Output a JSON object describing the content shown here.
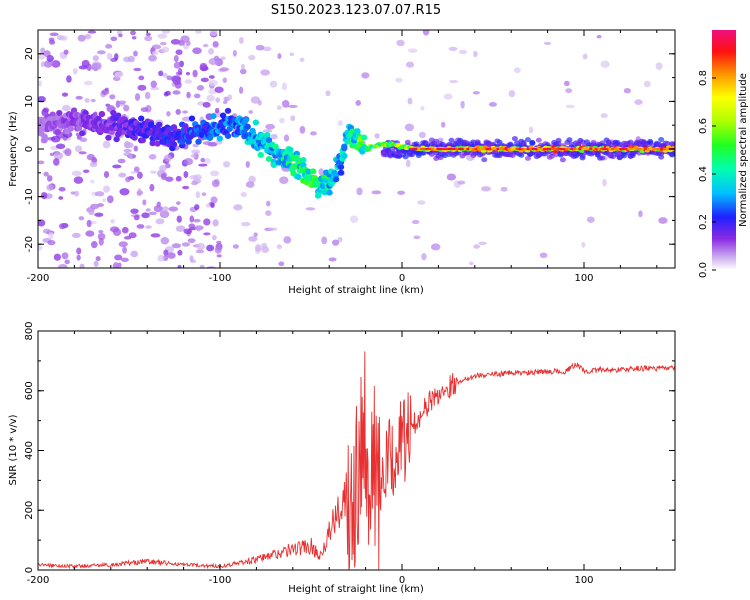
{
  "title": "S150.2023.123.07.07.R15",
  "chart_data": [
    {
      "type": "heatmap",
      "xlabel": "Height of straight line (km)",
      "ylabel": "Frequency (Hz)",
      "xlim": [
        -200,
        150
      ],
      "ylim": [
        -25,
        25
      ],
      "x_ticks": [
        -200,
        -100,
        0,
        100
      ],
      "x_tick_labels": [
        "-200",
        "-100",
        "0",
        "100"
      ],
      "y_ticks": [
        -20,
        -10,
        0,
        10,
        20
      ],
      "y_tick_labels": [
        "-20",
        "-10",
        "0",
        "10",
        "20"
      ],
      "colorbar": {
        "label": "Normalized spectral amplitude",
        "range": [
          0,
          1
        ],
        "ticks": [
          0.0,
          0.2,
          0.4,
          0.6,
          0.8
        ],
        "tick_labels": [
          "0.0",
          "0.2",
          "0.4",
          "0.6",
          "0.8"
        ]
      },
      "ridge": {
        "x": [
          -200,
          -175,
          -150,
          -125,
          -105,
          -90,
          -80,
          -70,
          -60,
          -50,
          -42,
          -38,
          -34,
          -30,
          -25,
          -20,
          -10,
          0,
          10,
          20,
          50,
          100,
          150
        ],
        "frequency": [
          5,
          6,
          4,
          3,
          4,
          5,
          3,
          -1,
          -3,
          -6,
          -8,
          -6,
          -3,
          3,
          2,
          0,
          1,
          0.5,
          0,
          0,
          0,
          0,
          0
        ],
        "amplitude": [
          0.1,
          0.15,
          0.2,
          0.25,
          0.3,
          0.35,
          0.4,
          0.45,
          0.5,
          0.55,
          0.5,
          0.45,
          0.4,
          0.45,
          0.55,
          0.6,
          0.65,
          0.7,
          0.8,
          0.85,
          0.9,
          0.92,
          0.95
        ]
      }
    },
    {
      "type": "line",
      "xlabel": "Height of straight line (km)",
      "ylabel": "SNR (10 * v/v)",
      "xlim": [
        -200,
        150
      ],
      "ylim": [
        0,
        800
      ],
      "x_ticks": [
        -200,
        -100,
        0,
        100
      ],
      "x_tick_labels": [
        "-200",
        "-100",
        "0",
        "100"
      ],
      "y_ticks": [
        0,
        200,
        400,
        600,
        800
      ],
      "y_tick_labels": [
        "0",
        "200",
        "400",
        "600",
        "800"
      ],
      "color": "#e83030",
      "series": [
        {
          "x": [
            -200,
            -180,
            -160,
            -140,
            -120,
            -100,
            -80,
            -70,
            -60,
            -50,
            -45,
            -40,
            -35,
            -30,
            -25,
            -22,
            -20,
            -18,
            -15,
            -12,
            -10,
            -5,
            0,
            5,
            10,
            15,
            20,
            25,
            30,
            40,
            50,
            60,
            70,
            80,
            90,
            96,
            100,
            110,
            120,
            130,
            140,
            150
          ],
          "y": [
            15,
            10,
            15,
            25,
            15,
            10,
            30,
            45,
            60,
            70,
            40,
            110,
            160,
            250,
            330,
            520,
            450,
            400,
            300,
            250,
            320,
            380,
            430,
            470,
            520,
            560,
            590,
            610,
            630,
            650,
            655,
            660,
            660,
            665,
            665,
            690,
            665,
            670,
            670,
            675,
            675,
            675
          ]
        }
      ]
    }
  ]
}
